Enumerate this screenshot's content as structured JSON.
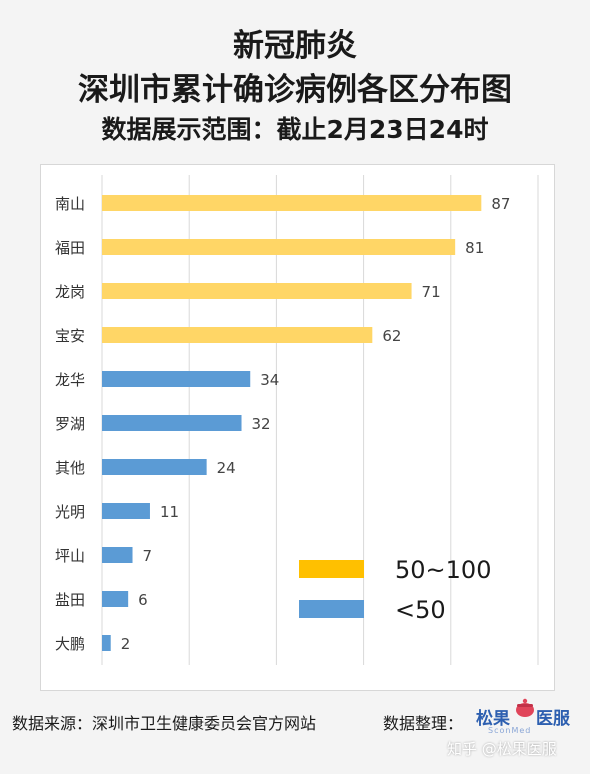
{
  "header": {
    "title_line1": "新冠肺炎",
    "title_line2": "深圳市累计确诊病例各区分布图",
    "title_line3": "数据展示范围：截止2月23日24时"
  },
  "footer": {
    "source": "数据来源：深圳市卫生健康委员会官方网站",
    "organizer": "数据整理：",
    "logo_left": "松果",
    "logo_right": "医服",
    "logo_sub": "SconMed",
    "watermark": "知乎 @松果医服"
  },
  "colors": {
    "high": "#ffd666",
    "low": "#5b9bd5",
    "legend_high": "#ffc000",
    "legend_low": "#5b9bd5",
    "grid": "#d9d9d9"
  },
  "chart_data": {
    "type": "bar",
    "orientation": "horizontal",
    "categories": [
      "南山",
      "福田",
      "龙岗",
      "宝安",
      "龙华",
      "罗湖",
      "其他",
      "光明",
      "坪山",
      "盐田",
      "大鹏"
    ],
    "values": [
      87,
      81,
      71,
      62,
      34,
      32,
      24,
      11,
      7,
      6,
      2
    ],
    "groups": [
      "high",
      "high",
      "high",
      "high",
      "low",
      "low",
      "low",
      "low",
      "low",
      "low",
      "low"
    ],
    "xlim": [
      0,
      100
    ],
    "grid": true,
    "legend": [
      {
        "key": "high",
        "label": "50~100"
      },
      {
        "key": "low",
        "label": "<50"
      }
    ],
    "legend_position": "bottom-right"
  }
}
